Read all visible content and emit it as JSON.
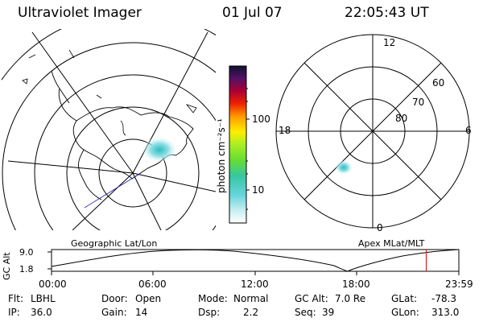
{
  "header": {
    "title": "Ultraviolet Imager",
    "date": "01 Jul 07",
    "time": "22:05:43 UT"
  },
  "colorbar": {
    "unit_label": "photon cm⁻²s⁻¹",
    "ticks": [
      "100",
      "10"
    ]
  },
  "polar_plot": {
    "mlt_labels": {
      "top": "12",
      "left": "18",
      "right": "6",
      "bottom": "0"
    },
    "lat_labels": [
      "60",
      "70",
      "80"
    ]
  },
  "altitude_strip": {
    "ylabel": "GC Alt",
    "ymax": "9.0",
    "ymin": "1.8",
    "left_title": "Geographic Lat/Lon",
    "right_title": "Apex MLat/MLT",
    "x_ticks": [
      "00:00",
      "06:00",
      "12:00",
      "18:00",
      "23:59"
    ],
    "marker_time_fraction": 0.92
  },
  "info": {
    "flt_label": "Flt:",
    "flt_value": "LBHL",
    "ip_label": "IP:",
    "ip_value": "36.0",
    "door_label": "Door:",
    "door_value": "Open",
    "gain_label": "Gain:",
    "gain_value": "14",
    "mode_label": "Mode:",
    "mode_value": "Normal",
    "dsp_label": "Dsp:",
    "dsp_value": "2.2",
    "gcalt_label": "GC Alt:",
    "gcalt_value": "7.0 Re",
    "seq_label": "Seq:",
    "seq_value": "39",
    "glat_label": "GLat:",
    "glat_value": "-78.3",
    "glon_label": "GLon:",
    "glon_value": "313.0"
  },
  "colors": {
    "marker": "#d62020",
    "aurora": "#3fc7c9"
  }
}
